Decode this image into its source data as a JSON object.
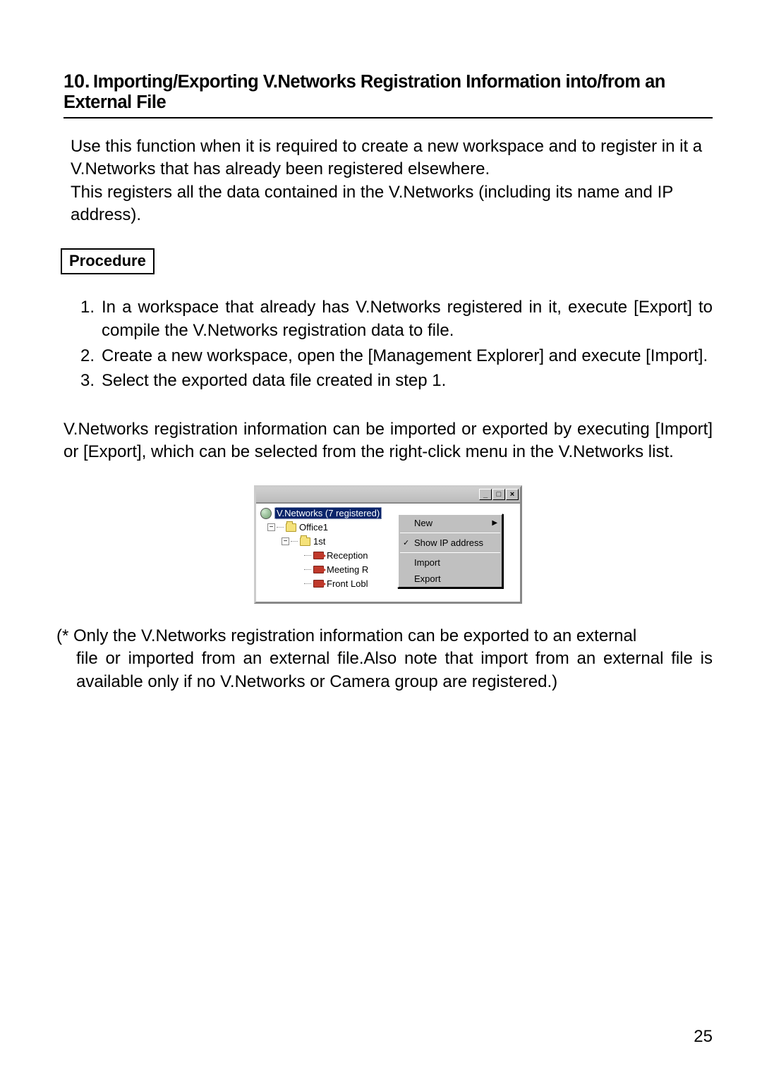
{
  "section": {
    "number": "10.",
    "title": "Importing/Exporting V.Networks Registration Information into/from an External File"
  },
  "intro": "Use this function when it is required to create a new workspace and to register in it a V.Networks that has already been registered elsewhere.\nThis registers all the data contained in the V.Networks (including its name and IP address).",
  "procedure_label": "Procedure",
  "steps": [
    {
      "n": "1.",
      "t": "In a workspace that already has V.Networks registered in it, execute [Export] to compile the V.Networks registration data to file."
    },
    {
      "n": "2.",
      "t": "Create a new workspace, open the [Management Explorer] and execute [Import]."
    },
    {
      "n": "3.",
      "t": "Select the exported data file created in step 1."
    }
  ],
  "para2": "V.Networks registration information can be imported or exported by executing [Import] or [Export], which can be selected from the right-click menu in the V.Networks list.",
  "note_lead": "(* Only the V.Networks registration information can be exported to an external",
  "note_rest": "file or imported from an external file.Also note that import from an external file is available only if no V.Networks or Camera group are registered.)",
  "page_number": "25",
  "screenshot": {
    "window_buttons": {
      "min": "_",
      "max": "□",
      "close": "×"
    },
    "tree": {
      "root": "V.Networks (7 registered)",
      "n1": "Office1",
      "n2": "1st",
      "leaf1": "Reception",
      "leaf2": "Meeting R",
      "leaf3": "Front Lobl"
    },
    "menu": {
      "new": "New",
      "show_ip": "Show IP address",
      "import": "Import",
      "export": "Export"
    }
  }
}
